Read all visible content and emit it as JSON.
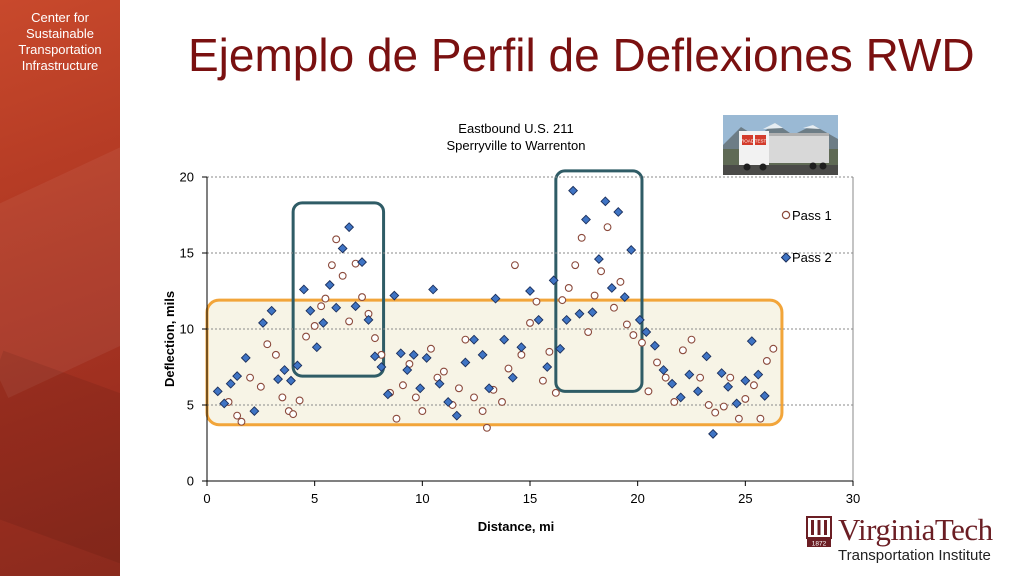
{
  "sidebar": {
    "lines": [
      "Center for",
      "Sustainable",
      "Transportation",
      "Infrastructure"
    ]
  },
  "slide": {
    "title": "Ejemplo de Perfil de Deflexiones RWD"
  },
  "photo": {
    "sign_left": "ROAD",
    "sign_right": "TEST"
  },
  "logo": {
    "name": "VirginiaTech",
    "subtitle": "Transportation Institute",
    "year": "1872"
  },
  "colors": {
    "title": "#7a1010",
    "sidebar": "#b33a24",
    "pass1_edge": "#8b4a3c",
    "pass2_fill": "#3f74c4",
    "pass2_edge": "#1b2f5c",
    "teal_box": "#2f5c66",
    "orange_box": "#f2a53a",
    "orange_fill": "#f7f4e6"
  },
  "chart_data": {
    "type": "scatter",
    "title": "Eastbound U.S. 211",
    "subtitle": "Sperryville to Warrenton",
    "xlabel": "Distance, mi",
    "ylabel": "Deflection, mils",
    "xlim": [
      0,
      30
    ],
    "ylim": [
      0,
      20
    ],
    "xticks": [
      0,
      5,
      10,
      15,
      20,
      25,
      30
    ],
    "yticks": [
      0,
      5,
      10,
      15,
      20
    ],
    "grid": "horizontal dashed",
    "legend_position": "right",
    "series": [
      {
        "name": "Pass 1",
        "marker": "circle",
        "points": [
          [
            1.0,
            5.2
          ],
          [
            1.4,
            4.3
          ],
          [
            1.6,
            3.9
          ],
          [
            2.0,
            6.8
          ],
          [
            2.5,
            6.2
          ],
          [
            2.8,
            9.0
          ],
          [
            3.2,
            8.3
          ],
          [
            3.5,
            5.5
          ],
          [
            3.8,
            4.6
          ],
          [
            4.0,
            4.4
          ],
          [
            4.3,
            5.3
          ],
          [
            4.6,
            9.5
          ],
          [
            5.0,
            10.2
          ],
          [
            5.3,
            11.5
          ],
          [
            5.5,
            12.0
          ],
          [
            5.8,
            14.2
          ],
          [
            6.0,
            15.9
          ],
          [
            6.3,
            13.5
          ],
          [
            6.6,
            10.5
          ],
          [
            6.9,
            14.3
          ],
          [
            7.2,
            12.1
          ],
          [
            7.5,
            11.0
          ],
          [
            7.8,
            9.4
          ],
          [
            8.1,
            8.3
          ],
          [
            8.5,
            5.8
          ],
          [
            8.8,
            4.1
          ],
          [
            9.1,
            6.3
          ],
          [
            9.4,
            7.7
          ],
          [
            9.7,
            5.5
          ],
          [
            10.0,
            4.6
          ],
          [
            10.4,
            8.7
          ],
          [
            10.7,
            6.8
          ],
          [
            11.0,
            7.2
          ],
          [
            11.4,
            5.0
          ],
          [
            11.7,
            6.1
          ],
          [
            12.0,
            9.3
          ],
          [
            12.4,
            5.5
          ],
          [
            12.8,
            4.6
          ],
          [
            13.0,
            3.5
          ],
          [
            13.3,
            6.0
          ],
          [
            13.7,
            5.2
          ],
          [
            14.0,
            7.4
          ],
          [
            14.3,
            14.2
          ],
          [
            14.6,
            8.3
          ],
          [
            15.0,
            10.4
          ],
          [
            15.3,
            11.8
          ],
          [
            15.6,
            6.6
          ],
          [
            15.9,
            8.5
          ],
          [
            16.2,
            5.8
          ],
          [
            16.5,
            11.9
          ],
          [
            16.8,
            12.7
          ],
          [
            17.1,
            14.2
          ],
          [
            17.4,
            16.0
          ],
          [
            17.7,
            9.8
          ],
          [
            18.0,
            12.2
          ],
          [
            18.3,
            13.8
          ],
          [
            18.6,
            16.7
          ],
          [
            18.9,
            11.4
          ],
          [
            19.2,
            13.1
          ],
          [
            19.5,
            10.3
          ],
          [
            19.8,
            9.6
          ],
          [
            20.2,
            9.1
          ],
          [
            20.5,
            5.9
          ],
          [
            20.9,
            7.8
          ],
          [
            21.3,
            6.8
          ],
          [
            21.7,
            5.2
          ],
          [
            22.1,
            8.6
          ],
          [
            22.5,
            9.3
          ],
          [
            22.9,
            6.8
          ],
          [
            23.3,
            5.0
          ],
          [
            23.6,
            4.5
          ],
          [
            24.0,
            4.9
          ],
          [
            24.3,
            6.8
          ],
          [
            24.7,
            4.1
          ],
          [
            25.0,
            5.4
          ],
          [
            25.4,
            6.3
          ],
          [
            25.7,
            4.1
          ],
          [
            26.0,
            7.9
          ],
          [
            26.3,
            8.7
          ]
        ]
      },
      {
        "name": "Pass 2",
        "marker": "diamond",
        "points": [
          [
            0.5,
            5.9
          ],
          [
            0.8,
            5.1
          ],
          [
            1.1,
            6.4
          ],
          [
            1.4,
            6.9
          ],
          [
            1.8,
            8.1
          ],
          [
            2.2,
            4.6
          ],
          [
            2.6,
            10.4
          ],
          [
            3.0,
            11.2
          ],
          [
            3.3,
            6.7
          ],
          [
            3.6,
            7.3
          ],
          [
            3.9,
            6.6
          ],
          [
            4.2,
            7.6
          ],
          [
            4.5,
            12.6
          ],
          [
            4.8,
            11.2
          ],
          [
            5.1,
            8.8
          ],
          [
            5.4,
            10.4
          ],
          [
            5.7,
            12.9
          ],
          [
            6.0,
            11.4
          ],
          [
            6.3,
            15.3
          ],
          [
            6.6,
            16.7
          ],
          [
            6.9,
            11.5
          ],
          [
            7.2,
            14.4
          ],
          [
            7.5,
            10.6
          ],
          [
            7.8,
            8.2
          ],
          [
            8.1,
            7.5
          ],
          [
            8.4,
            5.7
          ],
          [
            8.7,
            12.2
          ],
          [
            9.0,
            8.4
          ],
          [
            9.3,
            7.3
          ],
          [
            9.6,
            8.3
          ],
          [
            9.9,
            6.1
          ],
          [
            10.2,
            8.1
          ],
          [
            10.5,
            12.6
          ],
          [
            10.8,
            6.4
          ],
          [
            11.2,
            5.2
          ],
          [
            11.6,
            4.3
          ],
          [
            12.0,
            7.8
          ],
          [
            12.4,
            9.3
          ],
          [
            12.8,
            8.3
          ],
          [
            13.1,
            6.1
          ],
          [
            13.4,
            12.0
          ],
          [
            13.8,
            9.3
          ],
          [
            14.2,
            6.8
          ],
          [
            14.6,
            8.8
          ],
          [
            15.0,
            12.5
          ],
          [
            15.4,
            10.6
          ],
          [
            15.8,
            7.5
          ],
          [
            16.1,
            13.2
          ],
          [
            16.4,
            8.7
          ],
          [
            16.7,
            10.6
          ],
          [
            17.0,
            19.1
          ],
          [
            17.3,
            11.0
          ],
          [
            17.6,
            17.2
          ],
          [
            17.9,
            11.1
          ],
          [
            18.2,
            14.6
          ],
          [
            18.5,
            18.4
          ],
          [
            18.8,
            12.7
          ],
          [
            19.1,
            17.7
          ],
          [
            19.4,
            12.1
          ],
          [
            19.7,
            15.2
          ],
          [
            20.1,
            10.6
          ],
          [
            20.4,
            9.8
          ],
          [
            20.8,
            8.9
          ],
          [
            21.2,
            7.3
          ],
          [
            21.6,
            6.4
          ],
          [
            22.0,
            5.5
          ],
          [
            22.4,
            7.0
          ],
          [
            22.8,
            5.9
          ],
          [
            23.2,
            8.2
          ],
          [
            23.5,
            3.1
          ],
          [
            23.9,
            7.1
          ],
          [
            24.2,
            6.2
          ],
          [
            24.6,
            5.1
          ],
          [
            25.0,
            6.6
          ],
          [
            25.3,
            9.2
          ],
          [
            25.6,
            7.0
          ],
          [
            25.9,
            5.6
          ]
        ]
      }
    ],
    "highlight_regions": [
      {
        "style": "teal",
        "x_range": [
          4.0,
          8.2
        ],
        "y_range": [
          6.9,
          18.3
        ]
      },
      {
        "style": "teal",
        "x_range": [
          16.2,
          20.2
        ],
        "y_range": [
          5.9,
          20.4
        ]
      },
      {
        "style": "orange",
        "x_range": [
          0.0,
          26.7
        ],
        "y_range": [
          3.7,
          11.9
        ]
      }
    ]
  }
}
